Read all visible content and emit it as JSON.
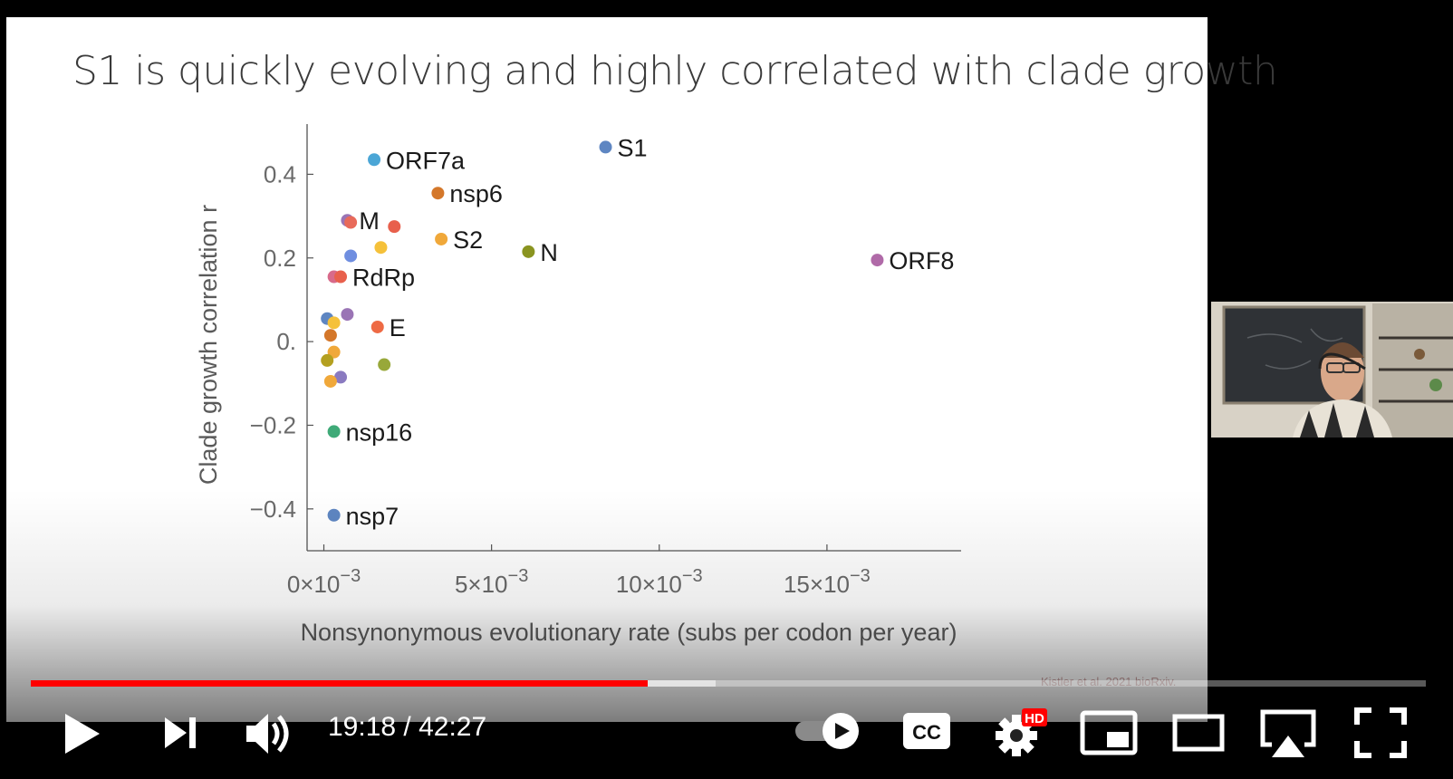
{
  "slide": {
    "title": "S1 is quickly evolving and highly correlated with clade growth",
    "citation": "Kistler et al. 2021 bioRxiv."
  },
  "chart_data": {
    "type": "scatter",
    "title": "",
    "xlabel": "Nonsynonymous evolutionary rate (subs per codon per year)",
    "ylabel": "Clade growth correlation r",
    "xlim": [
      -0.0005,
      0.019
    ],
    "ylim": [
      -0.5,
      0.52
    ],
    "x_ticks": [
      {
        "value": 0,
        "mant": "0×10",
        "exp": "−3"
      },
      {
        "value": 0.005,
        "mant": "5×10",
        "exp": "−3"
      },
      {
        "value": 0.01,
        "mant": "10×10",
        "exp": "−3"
      },
      {
        "value": 0.015,
        "mant": "15×10",
        "exp": "−3"
      }
    ],
    "y_ticks": [
      {
        "value": 0.4,
        "label": "0.4"
      },
      {
        "value": 0.2,
        "label": "0.2"
      },
      {
        "value": 0.0,
        "label": "0."
      },
      {
        "value": -0.2,
        "label": "−0.2"
      },
      {
        "value": -0.4,
        "label": "−0.4"
      }
    ],
    "grid": false,
    "points": [
      {
        "label": "S1",
        "x": 0.0084,
        "y": 0.465,
        "color": "#5e86c2"
      },
      {
        "label": "ORF7a",
        "x": 0.0015,
        "y": 0.435,
        "color": "#4ba6d6"
      },
      {
        "label": "nsp6",
        "x": 0.0034,
        "y": 0.355,
        "color": "#d4772a"
      },
      {
        "label": "M",
        "x": 0.0007,
        "y": 0.29,
        "color": "#9a74b5"
      },
      {
        "label": "",
        "x": 0.0008,
        "y": 0.285,
        "color": "#e86a5a"
      },
      {
        "label": "",
        "x": 0.0021,
        "y": 0.275,
        "color": "#e8604c"
      },
      {
        "label": "S2",
        "x": 0.0035,
        "y": 0.245,
        "color": "#f0a83a"
      },
      {
        "label": "",
        "x": 0.0017,
        "y": 0.225,
        "color": "#f5c13a"
      },
      {
        "label": "N",
        "x": 0.0061,
        "y": 0.215,
        "color": "#8a9420"
      },
      {
        "label": "",
        "x": 0.0008,
        "y": 0.205,
        "color": "#6f8ee0"
      },
      {
        "label": "ORF8",
        "x": 0.0165,
        "y": 0.195,
        "color": "#b06aa8"
      },
      {
        "label": "",
        "x": 0.0003,
        "y": 0.155,
        "color": "#d86a8a"
      },
      {
        "label": "RdRp",
        "x": 0.0005,
        "y": 0.155,
        "color": "#e8604c"
      },
      {
        "label": "",
        "x": 0.0007,
        "y": 0.065,
        "color": "#9a74b5"
      },
      {
        "label": "",
        "x": 0.0001,
        "y": 0.055,
        "color": "#5e86c2"
      },
      {
        "label": "",
        "x": 0.0003,
        "y": 0.045,
        "color": "#f5c13a"
      },
      {
        "label": "E",
        "x": 0.0016,
        "y": 0.035,
        "color": "#ee6a44"
      },
      {
        "label": "",
        "x": 0.0002,
        "y": 0.015,
        "color": "#d4772a"
      },
      {
        "label": "",
        "x": 0.0003,
        "y": -0.025,
        "color": "#f0a83a"
      },
      {
        "label": "",
        "x": 0.0001,
        "y": -0.045,
        "color": "#b4a020"
      },
      {
        "label": "",
        "x": 0.0018,
        "y": -0.055,
        "color": "#98a83a"
      },
      {
        "label": "",
        "x": 0.0005,
        "y": -0.085,
        "color": "#8a7ac0"
      },
      {
        "label": "",
        "x": 0.0002,
        "y": -0.095,
        "color": "#f0a83a"
      },
      {
        "label": "nsp16",
        "x": 0.0003,
        "y": -0.215,
        "color": "#3faa78"
      },
      {
        "label": "nsp7",
        "x": 0.0003,
        "y": -0.415,
        "color": "#5e86c2"
      }
    ]
  },
  "player": {
    "time_current": "19:18",
    "time_separator": " / ",
    "time_total": "42:27",
    "progress_played": 0.442,
    "progress_buffered": 0.491,
    "hd_badge": "HD",
    "cc_label": "CC",
    "icons": [
      "play-icon",
      "next-icon",
      "volume-icon",
      "autoplay-toggle-icon",
      "cc-icon",
      "settings-icon",
      "miniplayer-icon",
      "theater-icon",
      "airplay-icon",
      "fullscreen-icon"
    ],
    "accent_color": "#ff0000"
  }
}
